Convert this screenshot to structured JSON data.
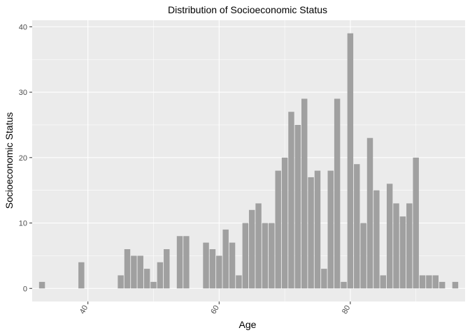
{
  "chart_data": {
    "type": "bar",
    "title": "Distribution of Socioeconomic Status",
    "xlabel": "Age",
    "ylabel": "Socioeconomic Status",
    "xlim": [
      31.5,
      97.5
    ],
    "ylim": [
      -2,
      41
    ],
    "x_ticks": [
      40,
      60,
      80
    ],
    "x_tick_labels": [
      "40",
      "60",
      "80"
    ],
    "y_ticks": [
      0,
      10,
      20,
      30,
      40
    ],
    "y_tick_labels": [
      "0",
      "10",
      "20",
      "30",
      "40"
    ],
    "x_tick_rotation": -60,
    "bar_color": "#a0a0a0",
    "panel_color": "#ebebeb",
    "grid": true,
    "legend": "none",
    "x": [
      33,
      39,
      45,
      46,
      47,
      48,
      49,
      50,
      51,
      52,
      54,
      55,
      58,
      59,
      60,
      61,
      62,
      63,
      64,
      65,
      66,
      67,
      68,
      69,
      70,
      71,
      72,
      73,
      74,
      75,
      76,
      77,
      78,
      79,
      80,
      81,
      82,
      83,
      84,
      85,
      86,
      87,
      88,
      89,
      90,
      91,
      92,
      93,
      94,
      96
    ],
    "values": [
      1,
      4,
      2,
      6,
      5,
      5,
      3,
      1,
      4,
      6,
      8,
      8,
      7,
      6,
      5,
      9,
      7,
      2,
      10,
      12,
      13,
      10,
      10,
      18,
      20,
      27,
      25,
      29,
      17,
      18,
      3,
      18,
      29,
      1,
      39,
      19,
      10,
      23,
      15,
      2,
      16,
      13,
      11,
      13,
      20,
      2,
      2,
      2,
      1,
      1
    ]
  }
}
